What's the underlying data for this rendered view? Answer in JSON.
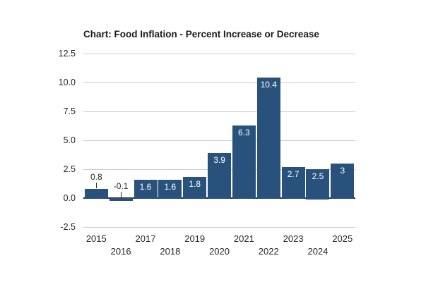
{
  "chart_data": {
    "type": "bar",
    "title": "Chart: Food Inflation - Percent Increase or Decrease",
    "categories": [
      "2015",
      "2016",
      "2017",
      "2018",
      "2019",
      "2020",
      "2021",
      "2022",
      "2023",
      "2024",
      "2025"
    ],
    "values": [
      0.8,
      -0.1,
      1.6,
      1.6,
      1.8,
      3.9,
      6.3,
      10.4,
      2.7,
      2.5,
      3
    ],
    "bar_labels": [
      "0.8",
      "-0.1",
      "1.6",
      "1.6",
      "1.8",
      "3.9",
      "6.3",
      "10.4",
      "2.7",
      "2.5",
      "3"
    ],
    "y_ticks": [
      12.5,
      10.0,
      7.5,
      5.0,
      2.5,
      0.0,
      -2.5
    ],
    "y_tick_labels": [
      "12.5",
      "10.0",
      "7.5",
      "5.0",
      "2.5",
      "0.0",
      "-2.5"
    ],
    "ylim": [
      -2.5,
      12.5
    ],
    "xlabel": "",
    "ylabel": "",
    "grid": true,
    "legend_position": "none",
    "colors": {
      "bar": "#28527c",
      "grid": "#cccccc",
      "zero_axis": "#262626",
      "tick_text": "#262626",
      "inside_label_text": "#ffffff",
      "title_text": "#1a1a1a",
      "background": "#ffffff"
    }
  }
}
